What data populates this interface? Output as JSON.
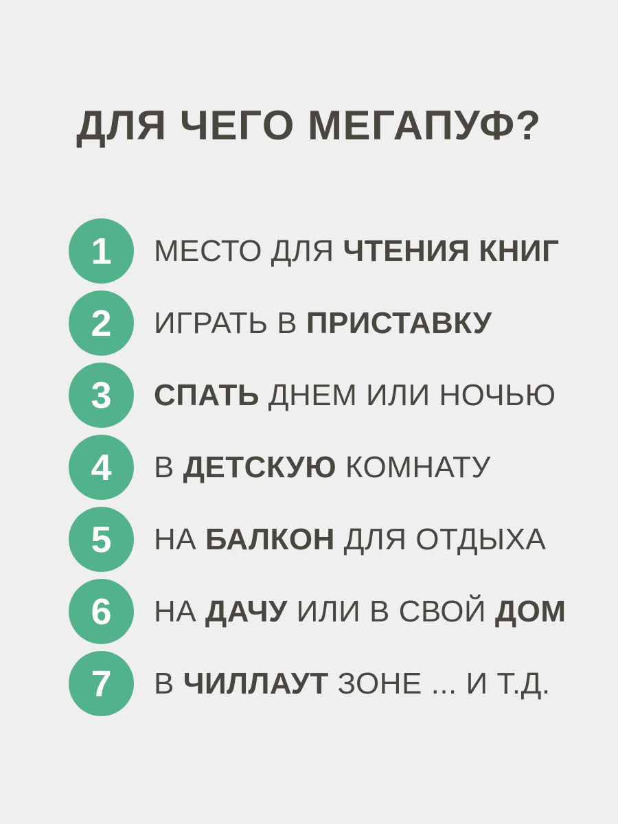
{
  "title": "ДЛЯ ЧЕГО МЕГАПУФ?",
  "colors": {
    "background": "#efefef",
    "accent_green": "#52b28b",
    "text_dark": "#494640",
    "number_white": "#ffffff"
  },
  "items": [
    {
      "number": "1",
      "segments": [
        {
          "text": "МЕСТО ДЛЯ ",
          "bold": false
        },
        {
          "text": "ЧТЕНИЯ КНИГ",
          "bold": true
        }
      ]
    },
    {
      "number": "2",
      "segments": [
        {
          "text": "ИГРАТЬ В ",
          "bold": false
        },
        {
          "text": "ПРИСТАВКУ",
          "bold": true
        }
      ]
    },
    {
      "number": "3",
      "segments": [
        {
          "text": "СПАТЬ",
          "bold": true
        },
        {
          "text": " ДНЕМ ИЛИ НОЧЬЮ",
          "bold": false
        }
      ]
    },
    {
      "number": "4",
      "segments": [
        {
          "text": "В ",
          "bold": false
        },
        {
          "text": "ДЕТСКУЮ",
          "bold": true
        },
        {
          "text": " КОМНАТУ",
          "bold": false
        }
      ]
    },
    {
      "number": "5",
      "segments": [
        {
          "text": "НА ",
          "bold": false
        },
        {
          "text": "БАЛКОН",
          "bold": true
        },
        {
          "text": " ДЛЯ ОТДЫХА",
          "bold": false
        }
      ]
    },
    {
      "number": "6",
      "segments": [
        {
          "text": "НА ",
          "bold": false
        },
        {
          "text": "ДАЧУ",
          "bold": true
        },
        {
          "text": " ИЛИ В СВОЙ ",
          "bold": false
        },
        {
          "text": "ДОМ",
          "bold": true
        }
      ]
    },
    {
      "number": "7",
      "segments": [
        {
          "text": "В ",
          "bold": false
        },
        {
          "text": "ЧИЛЛАУТ",
          "bold": true
        },
        {
          "text": " ЗОНЕ ... И Т.Д.",
          "bold": false
        }
      ]
    }
  ]
}
